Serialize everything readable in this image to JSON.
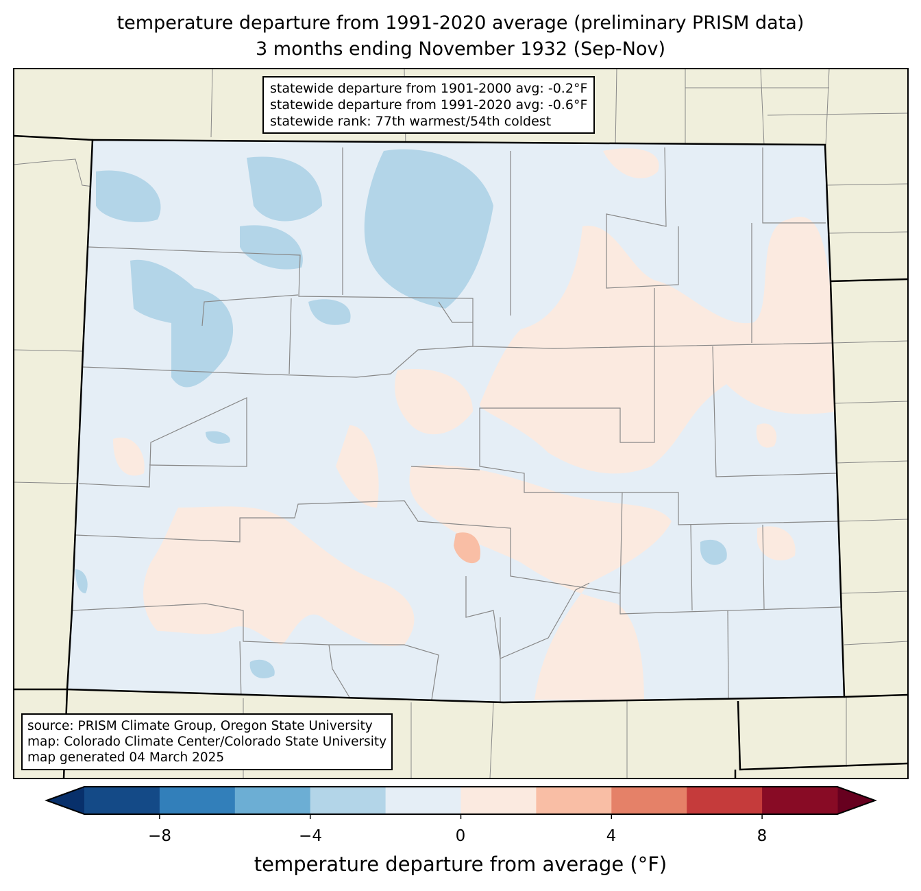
{
  "title": {
    "line1": "temperature departure from 1991-2020 average (preliminary PRISM data)",
    "line2": "3 months ending November 1932 (Sep-Nov)"
  },
  "stats": {
    "line1": "statewide departure from 1901-2000 avg: -0.2°F",
    "line2": "statewide departure from 1991-2020 avg: -0.6°F",
    "line3": "statewide rank: 77th warmest/54th coldest"
  },
  "source": {
    "line1": "source: PRISM Climate Group, Oregon State University",
    "line2": "map: Colorado Climate Center/Colorado State University",
    "line3": "map generated 04 March 2025"
  },
  "colorbar": {
    "label": "temperature departure from average (°F)",
    "bounds": [
      -10,
      10
    ],
    "step": 2,
    "ticks": [
      "−8",
      "−4",
      "0",
      "4",
      "8"
    ],
    "tick_values": [
      -8,
      -4,
      0,
      4,
      8
    ],
    "under_color": "#08306b",
    "over_color": "#67001f",
    "colors": [
      "#144a87",
      "#327fba",
      "#6caed4",
      "#b3d5e8",
      "#e5eef6",
      "#fbeae0",
      "#f9bea5",
      "#e58168",
      "#c53b3b",
      "#880b25"
    ]
  },
  "map_colors": {
    "background": "#f0efdc",
    "state_fill": "#e5eef6",
    "cool": "#b3d5e8",
    "warm": "#fbeae0",
    "warmer": "#f9bea5"
  }
}
